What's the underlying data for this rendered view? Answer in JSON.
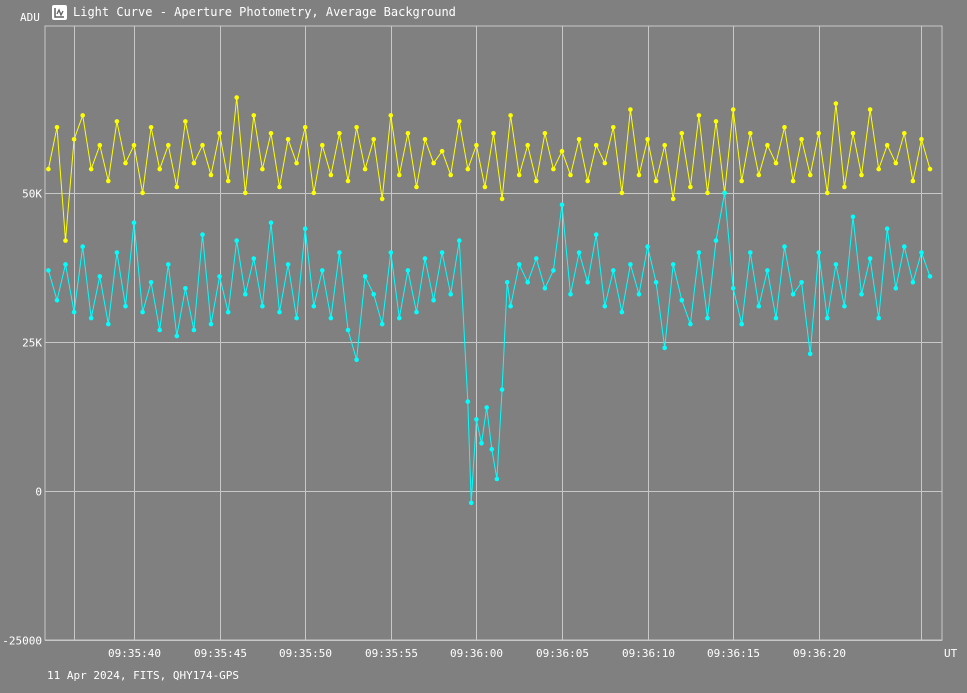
{
  "window": {
    "title": "Light Curve - Aperture Photometry, Average Background",
    "icon": "chart-app-icon"
  },
  "footer": "11 Apr 2024, FITS, QHY174-GPS",
  "colors": {
    "background": "#808080",
    "grid": "#c8c8c8",
    "series_target": "#ffff00",
    "series_comparison": "#00ffff"
  },
  "chart_data": {
    "type": "line",
    "ylabel": "ADU",
    "xlabel": "UT",
    "ylim": [
      -25000,
      78000
    ],
    "xlim": [
      "09:35:34.8",
      "09:36:27.2"
    ],
    "y_ticks": [
      {
        "value": 50000,
        "label": "50K"
      },
      {
        "value": 25000,
        "label": "25K"
      },
      {
        "value": 0,
        "label": "0"
      },
      {
        "value": -25000,
        "label": "-25000"
      }
    ],
    "x_ticks": [
      {
        "value": "09:35:40",
        "label": "09:35:40"
      },
      {
        "value": "09:35:45",
        "label": "09:35:45"
      },
      {
        "value": "09:35:50",
        "label": "09:35:50"
      },
      {
        "value": "09:35:55",
        "label": "09:35:55"
      },
      {
        "value": "09:36:00",
        "label": "09:36:00"
      },
      {
        "value": "09:36:05",
        "label": "09:36:05"
      },
      {
        "value": "09:36:10",
        "label": "09:36:10"
      },
      {
        "value": "09:36:15",
        "label": "09:36:15"
      },
      {
        "value": "09:36:20",
        "label": "09:36:20"
      }
    ],
    "grid": true,
    "markers": true,
    "series": [
      {
        "color": "#ffff00",
        "points": [
          [
            "09:35:35.0",
            54000
          ],
          [
            "09:35:35.5",
            61000
          ],
          [
            "09:35:36.0",
            42000
          ],
          [
            "09:35:36.5",
            59000
          ],
          [
            "09:35:37.0",
            63000
          ],
          [
            "09:35:37.5",
            54000
          ],
          [
            "09:35:38.0",
            58000
          ],
          [
            "09:35:38.5",
            52000
          ],
          [
            "09:35:39.0",
            62000
          ],
          [
            "09:35:39.5",
            55000
          ],
          [
            "09:35:40.0",
            58000
          ],
          [
            "09:35:40.5",
            50000
          ],
          [
            "09:35:41.0",
            61000
          ],
          [
            "09:35:41.5",
            54000
          ],
          [
            "09:35:42.0",
            58000
          ],
          [
            "09:35:42.5",
            51000
          ],
          [
            "09:35:43.0",
            62000
          ],
          [
            "09:35:43.5",
            55000
          ],
          [
            "09:35:44.0",
            58000
          ],
          [
            "09:35:44.5",
            53000
          ],
          [
            "09:35:45.0",
            60000
          ],
          [
            "09:35:45.5",
            52000
          ],
          [
            "09:35:46.0",
            66000
          ],
          [
            "09:35:46.5",
            50000
          ],
          [
            "09:35:47.0",
            63000
          ],
          [
            "09:35:47.5",
            54000
          ],
          [
            "09:35:48.0",
            60000
          ],
          [
            "09:35:48.5",
            51000
          ],
          [
            "09:35:49.0",
            59000
          ],
          [
            "09:35:49.5",
            55000
          ],
          [
            "09:35:50.0",
            61000
          ],
          [
            "09:35:50.5",
            50000
          ],
          [
            "09:35:51.0",
            58000
          ],
          [
            "09:35:51.5",
            53000
          ],
          [
            "09:35:52.0",
            60000
          ],
          [
            "09:35:52.5",
            52000
          ],
          [
            "09:35:53.0",
            61000
          ],
          [
            "09:35:53.5",
            54000
          ],
          [
            "09:35:54.0",
            59000
          ],
          [
            "09:35:54.5",
            49000
          ],
          [
            "09:35:55.0",
            63000
          ],
          [
            "09:35:55.5",
            53000
          ],
          [
            "09:35:56.0",
            60000
          ],
          [
            "09:35:56.5",
            51000
          ],
          [
            "09:35:57.0",
            59000
          ],
          [
            "09:35:57.5",
            55000
          ],
          [
            "09:35:58.0",
            57000
          ],
          [
            "09:35:58.5",
            53000
          ],
          [
            "09:35:59.0",
            62000
          ],
          [
            "09:35:59.5",
            54000
          ],
          [
            "09:36:00.0",
            58000
          ],
          [
            "09:36:00.5",
            51000
          ],
          [
            "09:36:01.0",
            60000
          ],
          [
            "09:36:01.5",
            49000
          ],
          [
            "09:36:02.0",
            63000
          ],
          [
            "09:36:02.5",
            53000
          ],
          [
            "09:36:03.0",
            58000
          ],
          [
            "09:36:03.5",
            52000
          ],
          [
            "09:36:04.0",
            60000
          ],
          [
            "09:36:04.5",
            54000
          ],
          [
            "09:36:05.0",
            57000
          ],
          [
            "09:36:05.5",
            53000
          ],
          [
            "09:36:06.0",
            59000
          ],
          [
            "09:36:06.5",
            52000
          ],
          [
            "09:36:07.0",
            58000
          ],
          [
            "09:36:07.5",
            55000
          ],
          [
            "09:36:08.0",
            61000
          ],
          [
            "09:36:08.5",
            50000
          ],
          [
            "09:36:09.0",
            64000
          ],
          [
            "09:36:09.5",
            53000
          ],
          [
            "09:36:10.0",
            59000
          ],
          [
            "09:36:10.5",
            52000
          ],
          [
            "09:36:11.0",
            58000
          ],
          [
            "09:36:11.5",
            49000
          ],
          [
            "09:36:12.0",
            60000
          ],
          [
            "09:36:12.5",
            51000
          ],
          [
            "09:36:13.0",
            63000
          ],
          [
            "09:36:13.5",
            50000
          ],
          [
            "09:36:14.0",
            62000
          ],
          [
            "09:36:14.5",
            50000
          ],
          [
            "09:36:15.0",
            64000
          ],
          [
            "09:36:15.5",
            52000
          ],
          [
            "09:36:16.0",
            60000
          ],
          [
            "09:36:16.5",
            53000
          ],
          [
            "09:36:17.0",
            58000
          ],
          [
            "09:36:17.5",
            55000
          ],
          [
            "09:36:18.0",
            61000
          ],
          [
            "09:36:18.5",
            52000
          ],
          [
            "09:36:19.0",
            59000
          ],
          [
            "09:36:19.5",
            53000
          ],
          [
            "09:36:20.0",
            60000
          ],
          [
            "09:36:20.5",
            50000
          ],
          [
            "09:36:21.0",
            65000
          ],
          [
            "09:36:21.5",
            51000
          ],
          [
            "09:36:22.0",
            60000
          ],
          [
            "09:36:22.5",
            53000
          ],
          [
            "09:36:23.0",
            64000
          ],
          [
            "09:36:23.5",
            54000
          ],
          [
            "09:36:24.0",
            58000
          ],
          [
            "09:36:24.5",
            55000
          ],
          [
            "09:36:25.0",
            60000
          ],
          [
            "09:36:25.5",
            52000
          ],
          [
            "09:36:26.0",
            59000
          ],
          [
            "09:36:26.5",
            54000
          ]
        ]
      },
      {
        "color": "#00ffff",
        "points": [
          [
            "09:35:35.0",
            37000
          ],
          [
            "09:35:35.5",
            32000
          ],
          [
            "09:35:36.0",
            38000
          ],
          [
            "09:35:36.5",
            30000
          ],
          [
            "09:35:37.0",
            41000
          ],
          [
            "09:35:37.5",
            29000
          ],
          [
            "09:35:38.0",
            36000
          ],
          [
            "09:35:38.5",
            28000
          ],
          [
            "09:35:39.0",
            40000
          ],
          [
            "09:35:39.5",
            31000
          ],
          [
            "09:35:40.0",
            45000
          ],
          [
            "09:35:40.5",
            30000
          ],
          [
            "09:35:41.0",
            35000
          ],
          [
            "09:35:41.5",
            27000
          ],
          [
            "09:35:42.0",
            38000
          ],
          [
            "09:35:42.5",
            26000
          ],
          [
            "09:35:43.0",
            34000
          ],
          [
            "09:35:43.5",
            27000
          ],
          [
            "09:35:44.0",
            43000
          ],
          [
            "09:35:44.5",
            28000
          ],
          [
            "09:35:45.0",
            36000
          ],
          [
            "09:35:45.5",
            30000
          ],
          [
            "09:35:46.0",
            42000
          ],
          [
            "09:35:46.5",
            33000
          ],
          [
            "09:35:47.0",
            39000
          ],
          [
            "09:35:47.5",
            31000
          ],
          [
            "09:35:48.0",
            45000
          ],
          [
            "09:35:48.5",
            30000
          ],
          [
            "09:35:49.0",
            38000
          ],
          [
            "09:35:49.5",
            29000
          ],
          [
            "09:35:50.0",
            44000
          ],
          [
            "09:35:50.5",
            31000
          ],
          [
            "09:35:51.0",
            37000
          ],
          [
            "09:35:51.5",
            29000
          ],
          [
            "09:35:52.0",
            40000
          ],
          [
            "09:35:52.5",
            27000
          ],
          [
            "09:35:53.0",
            22000
          ],
          [
            "09:35:53.5",
            36000
          ],
          [
            "09:35:54.0",
            33000
          ],
          [
            "09:35:54.5",
            28000
          ],
          [
            "09:35:55.0",
            40000
          ],
          [
            "09:35:55.5",
            29000
          ],
          [
            "09:35:56.0",
            37000
          ],
          [
            "09:35:56.5",
            30000
          ],
          [
            "09:35:57.0",
            39000
          ],
          [
            "09:35:57.5",
            32000
          ],
          [
            "09:35:58.0",
            40000
          ],
          [
            "09:35:58.5",
            33000
          ],
          [
            "09:35:59.0",
            42000
          ],
          [
            "09:35:59.5",
            15000
          ],
          [
            "09:35:59.7",
            -2000
          ],
          [
            "09:36:00.0",
            12000
          ],
          [
            "09:36:00.3",
            8000
          ],
          [
            "09:36:00.6",
            14000
          ],
          [
            "09:36:00.9",
            7000
          ],
          [
            "09:36:01.2",
            2000
          ],
          [
            "09:36:01.5",
            17000
          ],
          [
            "09:36:01.8",
            35000
          ],
          [
            "09:36:02.0",
            31000
          ],
          [
            "09:36:02.5",
            38000
          ],
          [
            "09:36:03.0",
            35000
          ],
          [
            "09:36:03.5",
            39000
          ],
          [
            "09:36:04.0",
            34000
          ],
          [
            "09:36:04.5",
            37000
          ],
          [
            "09:36:05.0",
            48000
          ],
          [
            "09:36:05.5",
            33000
          ],
          [
            "09:36:06.0",
            40000
          ],
          [
            "09:36:06.5",
            35000
          ],
          [
            "09:36:07.0",
            43000
          ],
          [
            "09:36:07.5",
            31000
          ],
          [
            "09:36:08.0",
            37000
          ],
          [
            "09:36:08.5",
            30000
          ],
          [
            "09:36:09.0",
            38000
          ],
          [
            "09:36:09.5",
            33000
          ],
          [
            "09:36:10.0",
            41000
          ],
          [
            "09:36:10.5",
            35000
          ],
          [
            "09:36:11.0",
            24000
          ],
          [
            "09:36:11.5",
            38000
          ],
          [
            "09:36:12.0",
            32000
          ],
          [
            "09:36:12.5",
            28000
          ],
          [
            "09:36:13.0",
            40000
          ],
          [
            "09:36:13.5",
            29000
          ],
          [
            "09:36:14.0",
            42000
          ],
          [
            "09:36:14.5",
            50000
          ],
          [
            "09:36:15.0",
            34000
          ],
          [
            "09:36:15.5",
            28000
          ],
          [
            "09:36:16.0",
            40000
          ],
          [
            "09:36:16.5",
            31000
          ],
          [
            "09:36:17.0",
            37000
          ],
          [
            "09:36:17.5",
            29000
          ],
          [
            "09:36:18.0",
            41000
          ],
          [
            "09:36:18.5",
            33000
          ],
          [
            "09:36:19.0",
            35000
          ],
          [
            "09:36:19.5",
            23000
          ],
          [
            "09:36:20.0",
            40000
          ],
          [
            "09:36:20.5",
            29000
          ],
          [
            "09:36:21.0",
            38000
          ],
          [
            "09:36:21.5",
            31000
          ],
          [
            "09:36:22.0",
            46000
          ],
          [
            "09:36:22.5",
            33000
          ],
          [
            "09:36:23.0",
            39000
          ],
          [
            "09:36:23.5",
            29000
          ],
          [
            "09:36:24.0",
            44000
          ],
          [
            "09:36:24.5",
            34000
          ],
          [
            "09:36:25.0",
            41000
          ],
          [
            "09:36:25.5",
            35000
          ],
          [
            "09:36:26.0",
            40000
          ],
          [
            "09:36:26.5",
            36000
          ]
        ]
      }
    ]
  }
}
